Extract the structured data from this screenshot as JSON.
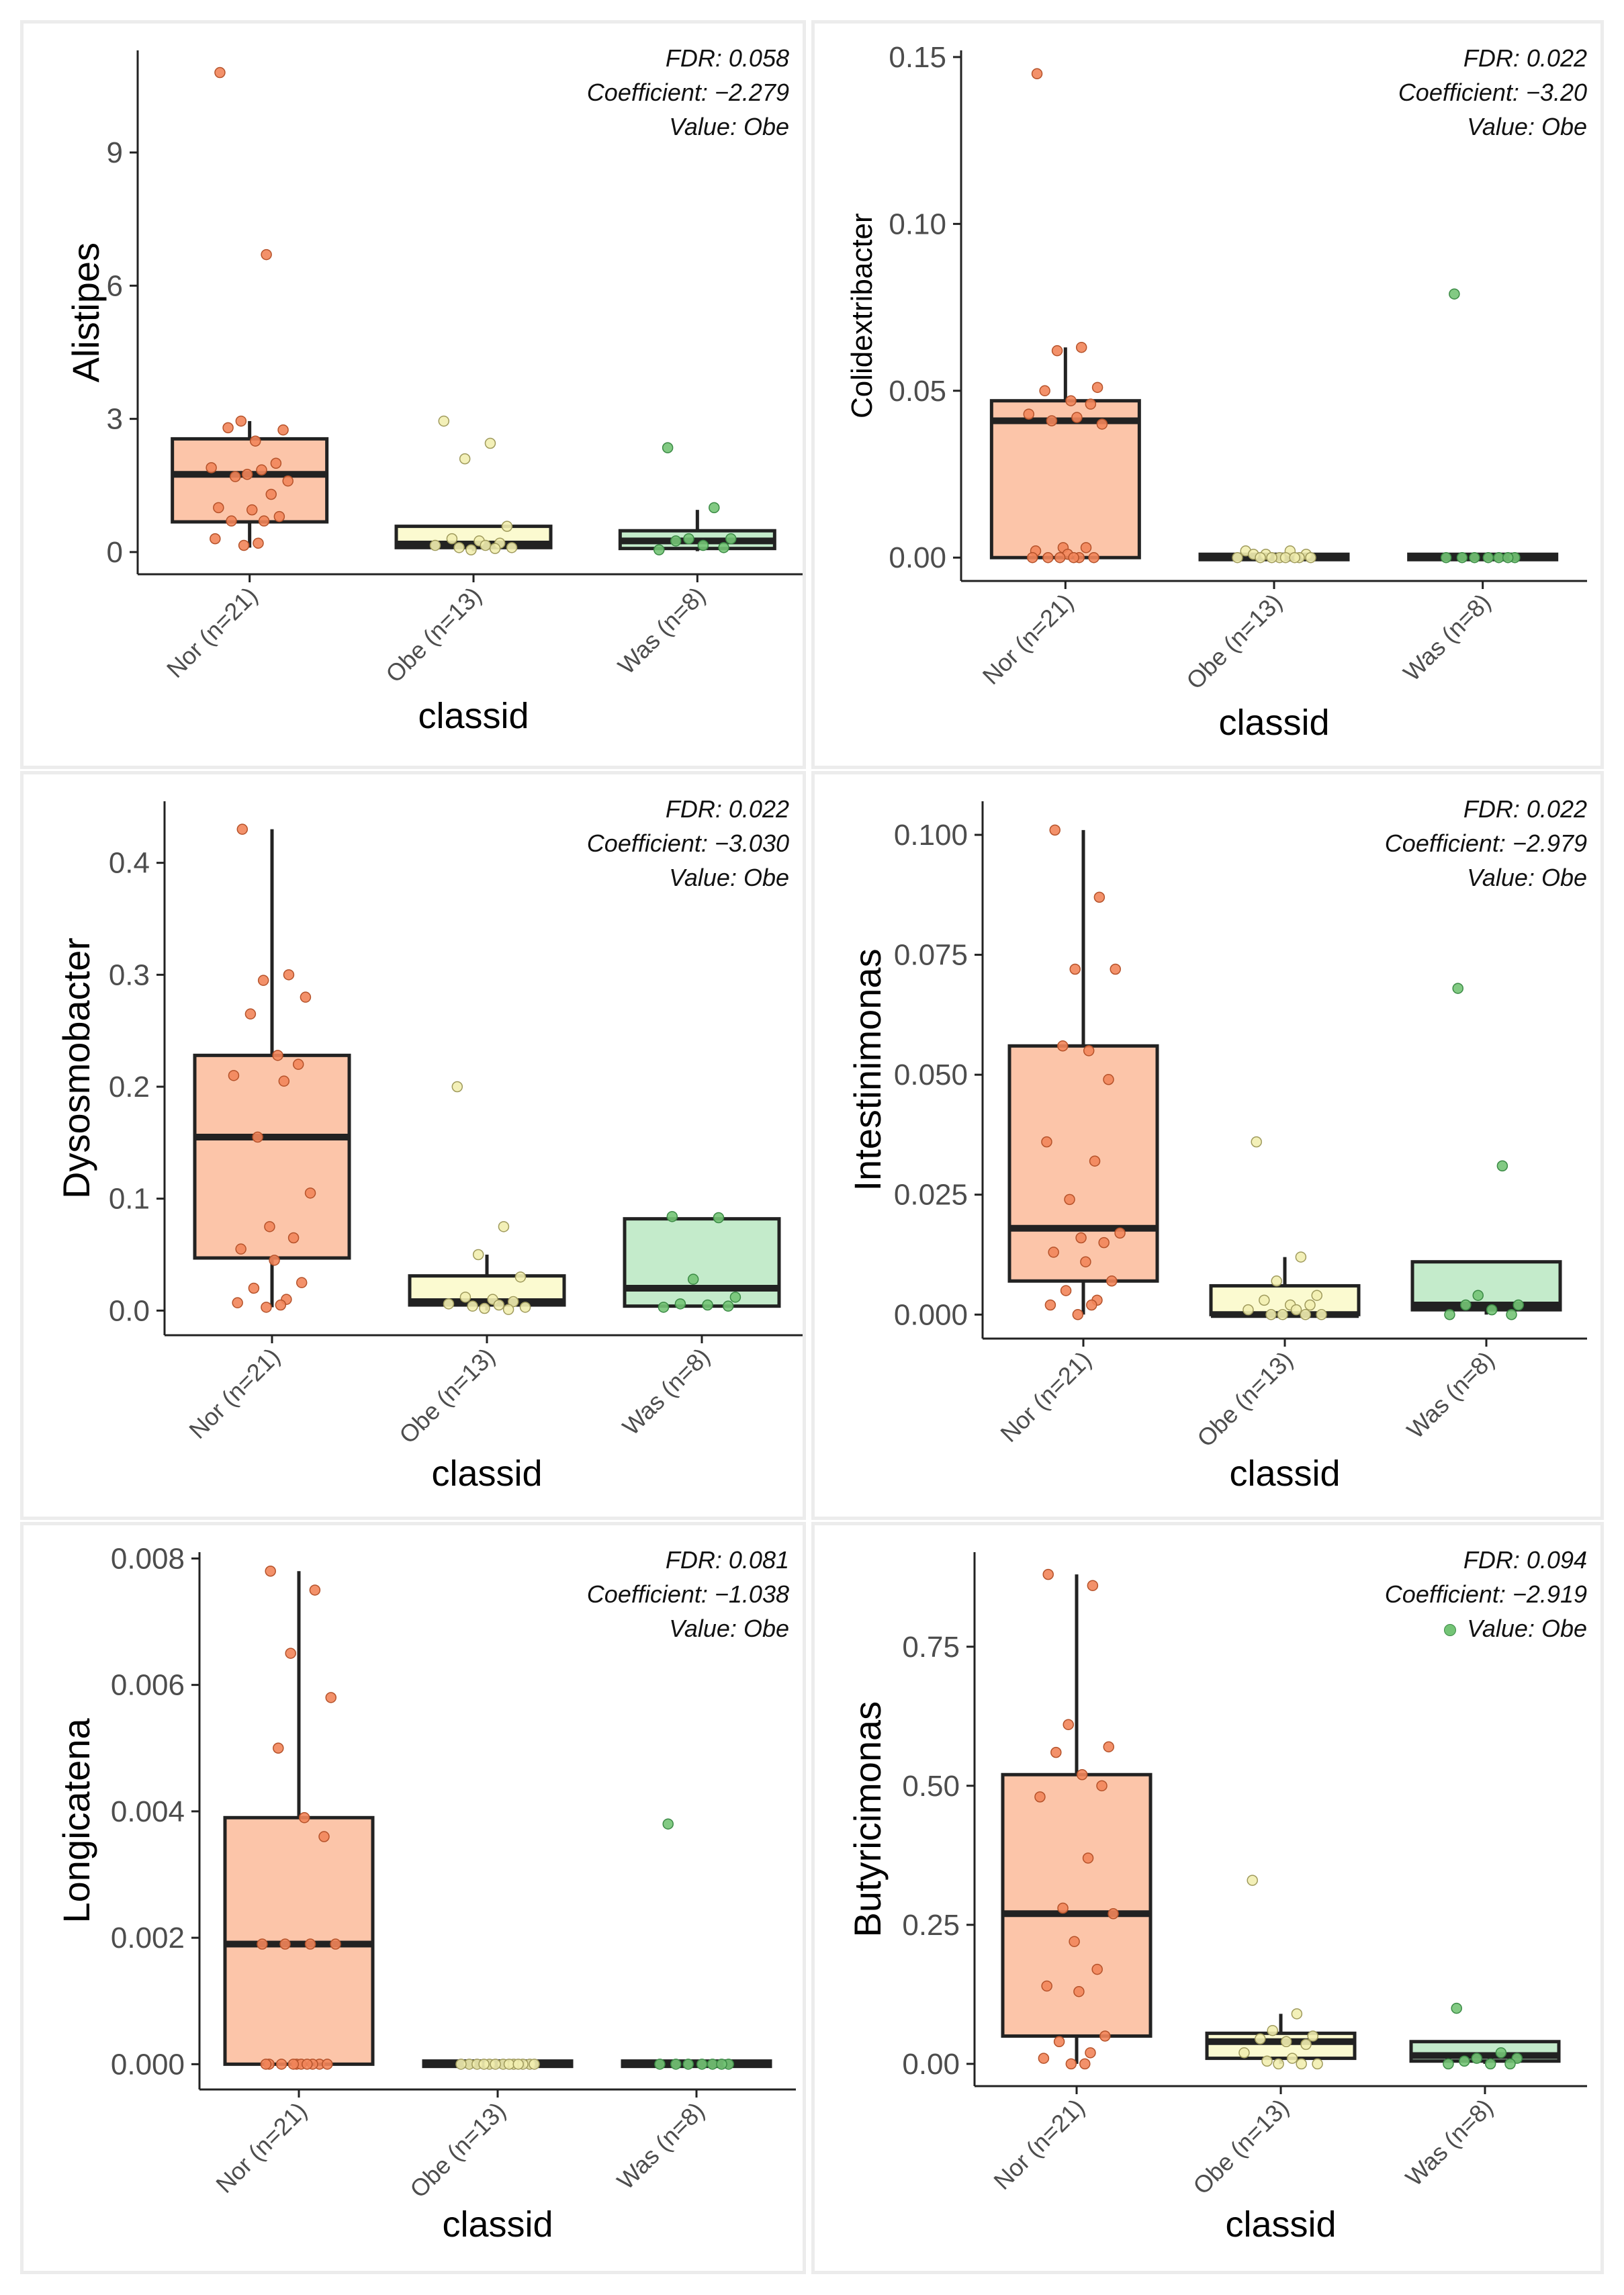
{
  "chart_data": [
    {
      "type": "box",
      "xlabel": "classid",
      "ylabel": "Alistipes",
      "categories": [
        "Nor (n=21)",
        "Obe (n=13)",
        "Was (n=8)"
      ],
      "yticks": [
        "0",
        "3",
        "6",
        "9"
      ],
      "ytick_values": [
        0,
        3,
        6,
        9
      ],
      "ylim": [
        -0.5,
        11.3
      ],
      "annotation": [
        "FDR: 0.058",
        "Coefficient: −2.279",
        "Value: Obe"
      ],
      "boxes": [
        {
          "q1": 0.68,
          "median": 1.75,
          "q3": 2.55,
          "whisker_low": 0.1,
          "whisker_high": 2.95
        },
        {
          "q1": 0.1,
          "median": 0.18,
          "q3": 0.58,
          "whisker_low": 0.02,
          "whisker_high": 0.58
        },
        {
          "q1": 0.08,
          "median": 0.25,
          "q3": 0.48,
          "whisker_low": 0.02,
          "whisker_high": 0.95
        }
      ],
      "points": [
        [
          10.8,
          6.7,
          2.95,
          2.75,
          2.8,
          2.5,
          2.0,
          1.9,
          1.85,
          1.7,
          1.6,
          1.75,
          1.3,
          1.0,
          0.95,
          0.8,
          0.7,
          0.7,
          0.3,
          0.2,
          0.15
        ],
        [
          2.95,
          2.45,
          2.1,
          0.58,
          0.3,
          0.25,
          0.2,
          0.15,
          0.15,
          0.1,
          0.1,
          0.05,
          0.08
        ],
        [
          2.35,
          1.0,
          0.3,
          0.3,
          0.25,
          0.15,
          0.1,
          0.05
        ]
      ]
    },
    {
      "type": "box",
      "xlabel": "classid",
      "ylabel": "Colidextribacter",
      "categories": [
        "Nor (n=21)",
        "Obe (n=13)",
        "Was (n=8)"
      ],
      "yticks": [
        "0.00",
        "0.05",
        "0.10",
        "0.15"
      ],
      "ytick_values": [
        0,
        0.05,
        0.1,
        0.15
      ],
      "ylim": [
        -0.007,
        0.152
      ],
      "annotation": [
        "FDR: 0.022",
        "Coefficient: −3.20",
        "Value: Obe"
      ],
      "boxes": [
        {
          "q1": 0.0,
          "median": 0.041,
          "q3": 0.047,
          "whisker_low": 0.0,
          "whisker_high": 0.063
        },
        {
          "q1": 0.0,
          "median": 0.0,
          "q3": 0.001,
          "whisker_low": 0.0,
          "whisker_high": 0.001
        },
        {
          "q1": 0.0,
          "median": 0.0,
          "q3": 0.001,
          "whisker_low": 0.0,
          "whisker_high": 0.001
        }
      ],
      "points": [
        [
          0.145,
          0.063,
          0.062,
          0.051,
          0.05,
          0.047,
          0.046,
          0.043,
          0.042,
          0.041,
          0.04,
          0.003,
          0.003,
          0.002,
          0.001,
          0.0,
          0.0,
          0.0,
          0.0,
          0.0,
          0.0
        ],
        [
          0.002,
          0.002,
          0.001,
          0.001,
          0.001,
          0.0,
          0.0,
          0.0,
          0.0,
          0.0,
          0.0,
          0.0,
          0.0
        ],
        [
          0.079,
          0.0,
          0.0,
          0.0,
          0.0,
          0.0,
          0.0,
          0.0
        ]
      ]
    },
    {
      "type": "box",
      "xlabel": "classid",
      "ylabel": "Dysosmobacter",
      "categories": [
        "Nor (n=21)",
        "Obe (n=13)",
        "Was (n=8)"
      ],
      "yticks": [
        "0.0",
        "0.1",
        "0.2",
        "0.3",
        "0.4"
      ],
      "ytick_values": [
        0,
        0.1,
        0.2,
        0.3,
        0.4
      ],
      "ylim": [
        -0.022,
        0.455
      ],
      "annotation": [
        "FDR: 0.022",
        "Coefficient: −3.030",
        "Value: Obe"
      ],
      "boxes": [
        {
          "q1": 0.047,
          "median": 0.155,
          "q3": 0.228,
          "whisker_low": 0.003,
          "whisker_high": 0.43
        },
        {
          "q1": 0.005,
          "median": 0.008,
          "q3": 0.031,
          "whisker_low": 0.0,
          "whisker_high": 0.05
        },
        {
          "q1": 0.004,
          "median": 0.02,
          "q3": 0.082,
          "whisker_low": 0.003,
          "whisker_high": 0.082
        }
      ],
      "points": [
        [
          0.43,
          0.3,
          0.295,
          0.28,
          0.265,
          0.228,
          0.22,
          0.21,
          0.205,
          0.155,
          0.105,
          0.075,
          0.065,
          0.055,
          0.045,
          0.025,
          0.02,
          0.01,
          0.007,
          0.005,
          0.003
        ],
        [
          0.2,
          0.075,
          0.05,
          0.03,
          0.012,
          0.01,
          0.008,
          0.006,
          0.005,
          0.004,
          0.003,
          0.002,
          0.001
        ],
        [
          0.084,
          0.083,
          0.028,
          0.012,
          0.006,
          0.005,
          0.004,
          0.003
        ]
      ]
    },
    {
      "type": "box",
      "xlabel": "classid",
      "ylabel": "Intestinimonas",
      "categories": [
        "Nor (n=21)",
        "Obe (n=13)",
        "Was (n=8)"
      ],
      "yticks": [
        "0.000",
        "0.025",
        "0.050",
        "0.075",
        "0.100"
      ],
      "ytick_values": [
        0,
        0.025,
        0.05,
        0.075,
        0.1
      ],
      "ylim": [
        -0.005,
        0.107
      ],
      "annotation": [
        "FDR: 0.022",
        "Coefficient: −2.979",
        "Value: Obe"
      ],
      "boxes": [
        {
          "q1": 0.007,
          "median": 0.018,
          "q3": 0.056,
          "whisker_low": 0.0,
          "whisker_high": 0.101
        },
        {
          "q1": 0.0,
          "median": 0.0,
          "q3": 0.006,
          "whisker_low": 0.0,
          "whisker_high": 0.012
        },
        {
          "q1": 0.001,
          "median": 0.002,
          "q3": 0.011,
          "whisker_low": 0.0,
          "whisker_high": 0.011
        }
      ],
      "points": [
        [
          0.101,
          0.087,
          0.072,
          0.072,
          0.056,
          0.055,
          0.049,
          0.036,
          0.032,
          0.024,
          0.017,
          0.016,
          0.015,
          0.013,
          0.011,
          0.007,
          0.005,
          0.003,
          0.002,
          0.002,
          0.0
        ],
        [
          0.036,
          0.012,
          0.007,
          0.004,
          0.003,
          0.002,
          0.002,
          0.001,
          0.001,
          0.0,
          0.0,
          0.0,
          0.0
        ],
        [
          0.068,
          0.031,
          0.004,
          0.002,
          0.002,
          0.001,
          0.0,
          0.0
        ]
      ]
    },
    {
      "type": "box",
      "xlabel": "classid",
      "ylabel": "Longicatena",
      "categories": [
        "Nor (n=21)",
        "Obe (n=13)",
        "Was (n=8)"
      ],
      "yticks": [
        "0.000",
        "0.002",
        "0.004",
        "0.006",
        "0.008"
      ],
      "ytick_values": [
        0,
        0.002,
        0.004,
        0.006,
        0.008
      ],
      "ylim": [
        -0.0004,
        0.0081
      ],
      "annotation": [
        "FDR: 0.081",
        "Coefficient: −1.038",
        "Value: Obe"
      ],
      "boxes": [
        {
          "q1": 0.0,
          "median": 0.0019,
          "q3": 0.0039,
          "whisker_low": 0.0,
          "whisker_high": 0.0078
        },
        {
          "q1": 0.0,
          "median": 0.0,
          "q3": 5e-05,
          "whisker_low": 0.0,
          "whisker_high": 5e-05
        },
        {
          "q1": 0.0,
          "median": 0.0,
          "q3": 5e-05,
          "whisker_low": 0.0,
          "whisker_high": 5e-05
        }
      ],
      "points": [
        [
          0.0078,
          0.0075,
          0.0065,
          0.0058,
          0.005,
          0.0039,
          0.0036,
          0.0019,
          0.0019,
          0.0019,
          0.0019,
          0.0,
          0.0,
          0.0,
          0.0,
          0.0,
          0.0,
          0.0,
          0.0,
          0.0,
          0.0
        ],
        [
          0.0,
          0.0,
          0.0,
          0.0,
          0.0,
          0.0,
          0.0,
          0.0,
          0.0,
          0.0,
          0.0,
          0.0,
          0.0
        ],
        [
          0.0038,
          0.0,
          0.0,
          0.0,
          0.0,
          0.0,
          0.0,
          0.0
        ]
      ]
    },
    {
      "type": "box",
      "xlabel": "classid",
      "ylabel": "Butyricimonas",
      "categories": [
        "Nor (n=21)",
        "Obe (n=13)",
        "Was (n=8)"
      ],
      "yticks": [
        "0.00",
        "0.25",
        "0.50",
        "0.75"
      ],
      "ytick_values": [
        0,
        0.25,
        0.5,
        0.75
      ],
      "ylim": [
        -0.04,
        0.92
      ],
      "annotation": [
        "FDR: 0.094",
        "Coefficient: −2.919",
        "Value: Obe"
      ],
      "boxes": [
        {
          "q1": 0.05,
          "median": 0.27,
          "q3": 0.52,
          "whisker_low": 0.0,
          "whisker_high": 0.88
        },
        {
          "q1": 0.01,
          "median": 0.04,
          "q3": 0.055,
          "whisker_low": 0.0,
          "whisker_high": 0.09
        },
        {
          "q1": 0.005,
          "median": 0.015,
          "q3": 0.04,
          "whisker_low": 0.0,
          "whisker_high": 0.04
        }
      ],
      "points": [
        [
          0.88,
          0.86,
          0.61,
          0.57,
          0.56,
          0.52,
          0.5,
          0.48,
          0.37,
          0.28,
          0.27,
          0.22,
          0.17,
          0.14,
          0.13,
          0.05,
          0.04,
          0.02,
          0.01,
          0.0,
          0.0
        ],
        [
          0.33,
          0.09,
          0.06,
          0.05,
          0.045,
          0.04,
          0.035,
          0.02,
          0.01,
          0.005,
          0.0,
          0.0,
          0.0
        ],
        [
          0.1,
          0.02,
          0.01,
          0.01,
          0.005,
          0.0,
          0.0,
          0.0
        ]
      ]
    }
  ],
  "colors": {
    "group_fill": [
      "#fcc5a9",
      "#fbfad0",
      "#c4ebcb"
    ],
    "group_point": [
      "#f2855a",
      "#f2eeb0",
      "#74c476"
    ],
    "group_point_stroke": [
      "#b5522a",
      "#9f9a5c",
      "#3b8a45"
    ],
    "box_stroke": "#222222",
    "axis": "#222222",
    "tick_text": "#4d4d4d",
    "panel_border": "#ececec"
  }
}
